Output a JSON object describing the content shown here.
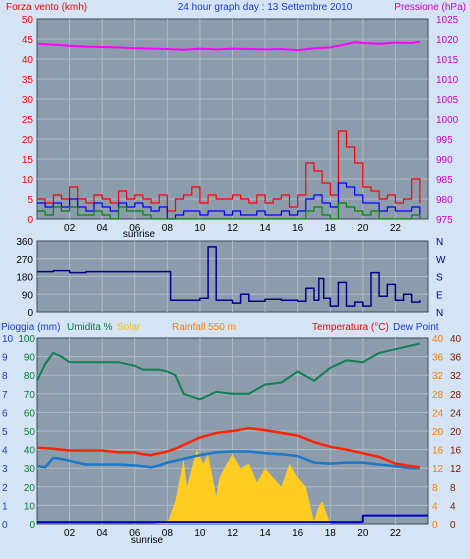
{
  "header": {
    "left_label": "Forza vento (kmh)",
    "title": "24 hour graph day : 13 Settembre 2010",
    "right_label": "Pressione (hPa)"
  },
  "colors": {
    "background": "#d4e4f4",
    "plot_bg": "#8c9cac",
    "grid": "#aebbc8",
    "wind_gust": "#ff0000",
    "wind_avg": "#0000ff",
    "wind_green": "#008800",
    "pressure": "#ff00ff",
    "direction": "#00008b",
    "humidity": "#128050",
    "solar": "#ffcc22",
    "temperature": "#ff2200",
    "dewpoint": "#1a78c8",
    "rain": "#0000cc",
    "red_text": "#ff0000",
    "blue_text": "#1a3cd0",
    "magenta_text": "#cc00cc",
    "orange_text": "#ff7a00",
    "yellow_text": "#e8c020",
    "green_text": "#0a7a3a"
  },
  "x_axis": {
    "ticks": [
      "02",
      "04",
      "06",
      "08",
      "10",
      "12",
      "14",
      "16",
      "18",
      "20",
      "22"
    ],
    "sunrise_label": "sunrise"
  },
  "chart_data": [
    {
      "type": "line",
      "panel": "wind_pressure",
      "x_range": [
        0,
        24
      ],
      "y_left": {
        "label": "Forza vento (kmh)",
        "ticks": [
          "50",
          "45",
          "40",
          "35",
          "30",
          "25",
          "20",
          "15",
          "10",
          "5",
          "0"
        ],
        "range": [
          0,
          50
        ]
      },
      "y_right": {
        "label": "Pressione (hPa)",
        "ticks": [
          "1025",
          "1020",
          "1015",
          "1010",
          "1005",
          "1000",
          "995",
          "990",
          "985",
          "980",
          "975"
        ],
        "range": [
          975,
          1025
        ]
      },
      "series": [
        {
          "key": "pressure",
          "axis": "right",
          "x": [
            0,
            1,
            2,
            3,
            4,
            5,
            6,
            7,
            8,
            9,
            10,
            11,
            12,
            13,
            14,
            15,
            16,
            17,
            18,
            19,
            19.5,
            20,
            21,
            22,
            23,
            23.5
          ],
          "values": [
            1018.8,
            1018.6,
            1018.3,
            1018.1,
            1018.0,
            1017.9,
            1017.7,
            1017.6,
            1017.5,
            1017.3,
            1017.6,
            1017.4,
            1017.6,
            1017.5,
            1017.4,
            1017.5,
            1017.2,
            1017.7,
            1017.9,
            1018.7,
            1019.2,
            1019.0,
            1018.8,
            1019.1,
            1019.0,
            1019.3
          ]
        },
        {
          "key": "wind_gust",
          "axis": "left",
          "x": [
            0,
            0.5,
            1,
            1.5,
            2,
            2.5,
            3,
            3.5,
            4,
            4.5,
            5,
            5.5,
            6,
            6.5,
            7,
            7.5,
            8,
            8.5,
            9,
            9.5,
            10,
            10.5,
            11,
            11.5,
            12,
            12.5,
            13,
            13.5,
            14,
            14.5,
            15,
            15.5,
            16,
            16.5,
            17,
            17.5,
            18,
            18.5,
            19,
            19.5,
            20,
            20.5,
            21,
            21.5,
            22,
            22.5,
            23,
            23.5
          ],
          "values": [
            5,
            4,
            6,
            5,
            8,
            5,
            4,
            6,
            5,
            4,
            7,
            5,
            6,
            5,
            4,
            6,
            2,
            5,
            6,
            8,
            4,
            6,
            5,
            5,
            6,
            5,
            4,
            6,
            4,
            5,
            6,
            3,
            6,
            14,
            12,
            9,
            6,
            22,
            18,
            14,
            8,
            7,
            5,
            6,
            4,
            5,
            10,
            4
          ]
        },
        {
          "key": "wind_avg",
          "axis": "left",
          "x": [
            0,
            0.5,
            1,
            1.5,
            2,
            2.5,
            3,
            3.5,
            4,
            4.5,
            5,
            5.5,
            6,
            6.5,
            7,
            7.5,
            8,
            8.5,
            9,
            9.5,
            10,
            10.5,
            11,
            11.5,
            12,
            12.5,
            13,
            13.5,
            14,
            14.5,
            15,
            15.5,
            16,
            16.5,
            17,
            17.5,
            18,
            18.5,
            19,
            19.5,
            20,
            20.5,
            21,
            21.5,
            22,
            22.5,
            23,
            23.5
          ],
          "values": [
            4,
            3,
            4,
            3,
            5,
            3,
            2,
            4,
            3,
            2,
            4,
            3,
            4,
            3,
            2,
            3,
            0,
            1,
            2,
            2,
            1,
            2,
            2,
            1,
            2,
            1,
            1,
            2,
            1,
            1,
            2,
            1,
            2,
            5,
            6,
            4,
            3,
            9,
            8,
            6,
            4,
            4,
            2,
            3,
            2,
            2,
            3,
            1
          ]
        },
        {
          "key": "wind_green",
          "axis": "left",
          "x": [
            0,
            0.5,
            1,
            1.5,
            2,
            2.5,
            3,
            3.5,
            4,
            4.5,
            5,
            5.5,
            6,
            6.5,
            7,
            7.5,
            8,
            8.5,
            9,
            9.5,
            10,
            10.5,
            11,
            11.5,
            12,
            12.5,
            13,
            13.5,
            14,
            14.5,
            15,
            15.5,
            16,
            16.5,
            17,
            17.5,
            18,
            18.5,
            19,
            19.5,
            20,
            20.5,
            21,
            21.5,
            22,
            22.5,
            23,
            23.5
          ],
          "values": [
            2,
            1,
            3,
            2,
            3,
            1,
            1,
            2,
            1,
            0,
            3,
            2,
            2,
            1,
            0,
            0,
            0,
            0,
            0,
            0,
            0,
            0,
            0,
            0,
            0,
            0,
            0,
            0,
            0,
            0,
            0,
            0,
            0,
            2,
            3,
            1,
            0,
            4,
            3,
            2,
            1,
            2,
            0,
            0,
            0,
            0,
            1,
            0
          ]
        }
      ]
    },
    {
      "type": "line",
      "panel": "wind_direction",
      "x_range": [
        0,
        24
      ],
      "y_left": {
        "ticks": [
          "360",
          "270",
          "180",
          "90",
          "0"
        ],
        "range": [
          0,
          360
        ]
      },
      "y_right": {
        "ticks": [
          "N",
          "W",
          "S",
          "E",
          "N"
        ]
      },
      "series": [
        {
          "key": "direction",
          "x": [
            0,
            1,
            2,
            3,
            4,
            5,
            6,
            7,
            8,
            8.2,
            9,
            10,
            10.5,
            11,
            12,
            12.5,
            13,
            14,
            15,
            16,
            16.5,
            17,
            17.3,
            17.6,
            18,
            18.5,
            19,
            19.5,
            20,
            20.5,
            21,
            21.5,
            22,
            22.5,
            23,
            23.5
          ],
          "values": [
            205,
            210,
            200,
            205,
            205,
            205,
            205,
            205,
            205,
            60,
            60,
            70,
            330,
            60,
            45,
            90,
            55,
            65,
            60,
            55,
            120,
            60,
            170,
            70,
            30,
            150,
            30,
            50,
            30,
            200,
            80,
            140,
            60,
            90,
            50,
            60
          ]
        }
      ]
    },
    {
      "type": "area",
      "panel": "temp_humidity",
      "x_range": [
        0,
        24
      ],
      "legend": [
        {
          "key": "rain",
          "label": "Pioggia (mm)"
        },
        {
          "key": "humidity",
          "label": "Umidita %"
        },
        {
          "key": "solar",
          "label": "Solar"
        },
        {
          "key": "radiation",
          "label": "Rainfall 550 m"
        },
        {
          "key": "temperature",
          "label": "Temperatura (°C)"
        },
        {
          "key": "dewpoint",
          "label": "Dew Point"
        }
      ],
      "y_left_rain": {
        "ticks": [
          "10",
          "9",
          "8",
          "7",
          "6",
          "5",
          "4",
          "3",
          "2",
          "1",
          "0"
        ],
        "range": [
          0,
          10
        ]
      },
      "y_left_humidity": {
        "ticks": [
          "100",
          "90",
          "80",
          "70",
          "60",
          "50",
          "40",
          "30",
          "20",
          "10",
          "0"
        ],
        "range": [
          0,
          100
        ]
      },
      "y_right_orange": {
        "ticks": [
          "40",
          "36",
          "32",
          "28",
          "24",
          "20",
          "16",
          "12",
          "8",
          "4",
          "0"
        ],
        "range": [
          0,
          40
        ]
      },
      "y_right_dark": {
        "ticks": [
          "40",
          "36",
          "32",
          "28",
          "24",
          "20",
          "16",
          "12",
          "8",
          "4",
          "0"
        ],
        "range": [
          0,
          40
        ]
      },
      "series": [
        {
          "key": "humidity",
          "x": [
            0,
            0.5,
            1,
            1.5,
            2,
            3,
            4,
            5,
            6,
            6.5,
            7,
            7.5,
            8,
            8.5,
            9,
            10,
            11,
            12,
            13,
            14,
            15,
            16,
            17,
            18,
            19,
            20,
            21,
            22,
            23,
            23.5
          ],
          "values": [
            77,
            86,
            92,
            90,
            87,
            87,
            87,
            87,
            85,
            83,
            83,
            83,
            82,
            80,
            70,
            67,
            71,
            70,
            70,
            75,
            76,
            82,
            77,
            84,
            88,
            87,
            92,
            94,
            96,
            97
          ]
        },
        {
          "key": "temperature",
          "x": [
            0,
            1,
            2,
            3,
            4,
            5,
            6,
            6.5,
            7,
            7.5,
            8,
            8.5,
            9,
            10,
            11,
            12,
            13,
            14,
            15,
            16,
            17,
            18,
            19,
            20,
            21,
            22,
            23,
            23.5
          ],
          "values": [
            16.4,
            16.2,
            15.8,
            15.8,
            15.8,
            15.4,
            15.4,
            15.0,
            14.8,
            15.2,
            15.6,
            16.2,
            17.0,
            18.6,
            19.6,
            20.0,
            20.6,
            20.2,
            19.6,
            19.0,
            17.6,
            16.6,
            16.0,
            15.2,
            14.4,
            13.0,
            12.4,
            12.2
          ]
        },
        {
          "key": "dewpoint",
          "x": [
            0,
            0.5,
            1,
            1.5,
            2,
            3,
            4,
            5,
            6,
            6.5,
            7,
            7.5,
            8,
            8.5,
            9,
            10,
            11,
            12,
            13,
            14,
            15,
            16,
            17,
            18,
            19,
            20,
            21,
            22,
            23,
            23.5
          ],
          "values": [
            12.5,
            12.2,
            14.2,
            14.0,
            13.6,
            12.8,
            12.8,
            12.8,
            12.6,
            12.4,
            12.2,
            12.6,
            13.2,
            13.6,
            14.0,
            14.8,
            15.4,
            15.6,
            15.6,
            15.2,
            15.0,
            14.6,
            13.2,
            13.0,
            13.2,
            13.2,
            12.8,
            12.4,
            12.0,
            12.0
          ]
        },
        {
          "key": "solar",
          "x": [
            0,
            6,
            7,
            8,
            8.5,
            9,
            9.2,
            9.5,
            9.8,
            10.2,
            10.5,
            11,
            11.2,
            11.5,
            12,
            12.5,
            13,
            13.5,
            14,
            14.5,
            15,
            15.5,
            16,
            16.5,
            17,
            17.2,
            17.5,
            17.8,
            18,
            24
          ],
          "values": [
            0,
            0,
            0,
            0.2,
            5,
            14,
            8,
            12,
            16,
            13,
            15,
            6,
            10,
            12,
            15,
            12,
            13,
            9,
            12,
            10,
            8,
            13,
            10,
            8,
            0.5,
            3,
            5,
            2,
            0,
            0
          ]
        },
        {
          "key": "rain",
          "x": [
            0,
            19.8,
            20,
            24
          ],
          "values": [
            0.1,
            0.1,
            0.45,
            0.45
          ]
        }
      ]
    }
  ]
}
